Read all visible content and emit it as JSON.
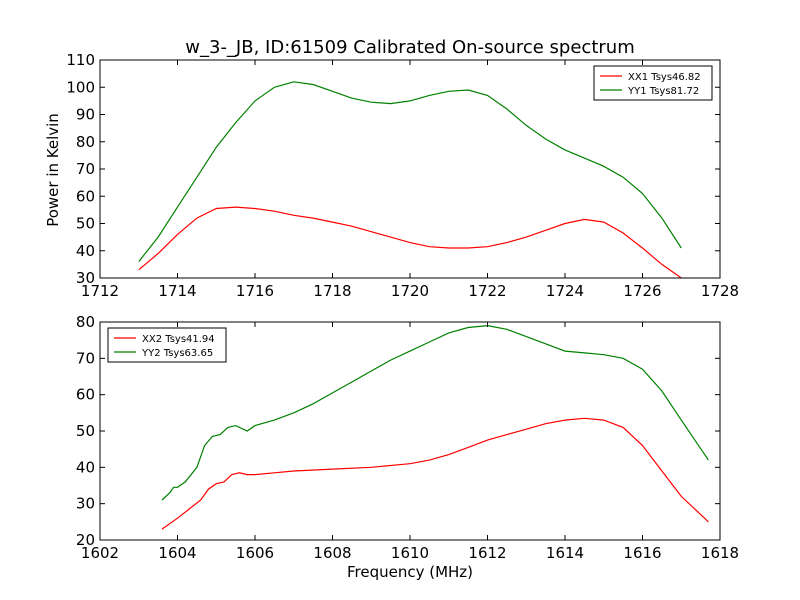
{
  "figure": {
    "title": "w_3-_JB, ID:61509 Calibrated On-source spectrum",
    "ylabel": "Power in Kelvin",
    "xlabel": "Frequency (MHz)"
  },
  "colors": {
    "red": "#ff0000",
    "green": "#008000",
    "axes": "#000000"
  },
  "chart_data": [
    {
      "type": "line",
      "xlim": [
        1712,
        1728
      ],
      "ylim": [
        30,
        110
      ],
      "xticks": [
        1712,
        1714,
        1716,
        1718,
        1720,
        1722,
        1724,
        1726,
        1728
      ],
      "yticks": [
        30,
        40,
        50,
        60,
        70,
        80,
        90,
        100,
        110
      ],
      "legend_position": "top-right",
      "series": [
        {
          "name": "XX1 Tsys46.82",
          "color": "#ff0000",
          "x": [
            1713.0,
            1713.5,
            1714.0,
            1714.5,
            1715.0,
            1715.5,
            1716.0,
            1716.5,
            1717.0,
            1717.5,
            1718.0,
            1718.5,
            1719.0,
            1719.5,
            1720.0,
            1720.5,
            1721.0,
            1721.5,
            1722.0,
            1722.5,
            1723.0,
            1723.5,
            1724.0,
            1724.5,
            1725.0,
            1725.5,
            1726.0,
            1726.5,
            1727.0
          ],
          "y": [
            33,
            39,
            46,
            52,
            55.5,
            56,
            55.5,
            54.5,
            53,
            52,
            50.5,
            49,
            47,
            45,
            43,
            41.5,
            41,
            41,
            41.5,
            43,
            45,
            47.5,
            50,
            51.5,
            50.5,
            46.5,
            41,
            35,
            30
          ]
        },
        {
          "name": "YY1 Tsys81.72",
          "color": "#008000",
          "x": [
            1713.0,
            1713.5,
            1714.0,
            1714.5,
            1715.0,
            1715.5,
            1716.0,
            1716.5,
            1717.0,
            1717.5,
            1718.0,
            1718.5,
            1719.0,
            1719.5,
            1720.0,
            1720.5,
            1721.0,
            1721.5,
            1722.0,
            1722.5,
            1723.0,
            1723.5,
            1724.0,
            1724.5,
            1725.0,
            1725.5,
            1726.0,
            1726.5,
            1727.0
          ],
          "y": [
            36,
            45,
            56,
            67,
            78,
            87,
            95,
            100,
            102,
            101,
            98.5,
            96,
            94.5,
            94,
            95,
            97,
            98.5,
            99,
            97,
            92,
            86,
            81,
            77,
            74,
            71,
            67,
            61,
            52,
            41
          ]
        }
      ]
    },
    {
      "type": "line",
      "xlim": [
        1602,
        1618
      ],
      "ylim": [
        20,
        80
      ],
      "xticks": [
        1602,
        1604,
        1606,
        1608,
        1610,
        1612,
        1614,
        1616,
        1618
      ],
      "yticks": [
        20,
        30,
        40,
        50,
        60,
        70,
        80
      ],
      "legend_position": "top-left",
      "series": [
        {
          "name": "XX2 Tsys41.94",
          "color": "#ff0000",
          "x": [
            1603.6,
            1604.0,
            1604.3,
            1604.6,
            1604.8,
            1605.0,
            1605.2,
            1605.4,
            1605.6,
            1605.8,
            1606.0,
            1606.5,
            1607.0,
            1608.0,
            1609.0,
            1610.0,
            1610.5,
            1611.0,
            1611.5,
            1612.0,
            1612.5,
            1613.0,
            1613.5,
            1614.0,
            1614.5,
            1615.0,
            1615.5,
            1616.0,
            1616.5,
            1617.0,
            1617.7
          ],
          "y": [
            23,
            26,
            28.5,
            31,
            34,
            35.5,
            36,
            38,
            38.5,
            38,
            38,
            38.5,
            39,
            39.5,
            40,
            41,
            42,
            43.5,
            45.5,
            47.5,
            49,
            50.5,
            52,
            53,
            53.5,
            53,
            51,
            46,
            39,
            32,
            25
          ]
        },
        {
          "name": "YY2 Tsys63.65",
          "color": "#008000",
          "x": [
            1603.6,
            1603.8,
            1603.9,
            1604.0,
            1604.2,
            1604.5,
            1604.7,
            1604.9,
            1605.1,
            1605.3,
            1605.5,
            1605.8,
            1606.0,
            1606.5,
            1607.0,
            1607.5,
            1608.0,
            1608.5,
            1609.0,
            1609.5,
            1610.0,
            1610.5,
            1611.0,
            1611.5,
            1612.0,
            1612.5,
            1613.0,
            1613.5,
            1614.0,
            1614.5,
            1615.0,
            1615.5,
            1616.0,
            1616.5,
            1617.0,
            1617.7
          ],
          "y": [
            31,
            33,
            34.5,
            34.5,
            36,
            40,
            46,
            48.5,
            49,
            51,
            51.5,
            50,
            51.5,
            53,
            55,
            57.5,
            60.5,
            63.5,
            66.5,
            69.5,
            72,
            74.5,
            77,
            78.5,
            79,
            78,
            76,
            74,
            72,
            71.5,
            71,
            70,
            67,
            61,
            53,
            42
          ]
        }
      ]
    }
  ]
}
